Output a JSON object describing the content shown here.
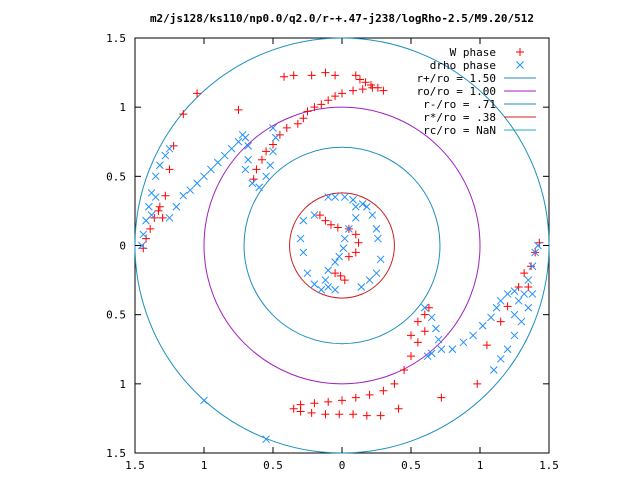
{
  "chart_data": {
    "type": "scatter",
    "title": "m2/js128/ks110/np0.0/q2.0/r-+.47-j238/logRho-2.5/M9.20/512",
    "xlabel": "",
    "ylabel": "",
    "xlim": [
      -1.5,
      1.5
    ],
    "ylim": [
      -1.5,
      1.5
    ],
    "x_tick_labels": [
      "1.5",
      "1",
      "0.5",
      "0",
      "0.5",
      "1",
      "1.5"
    ],
    "y_tick_labels": [
      "1.5",
      "1",
      "0.5",
      "0",
      "0.5",
      "1",
      "1.5"
    ],
    "grid": false,
    "legend_position": "top-right",
    "series": [
      {
        "name": "W phase",
        "marker": "plus",
        "color": "#ff0000",
        "points": [
          [
            -1.44,
            -0.02
          ],
          [
            -1.42,
            0.05
          ],
          [
            -1.39,
            0.12
          ],
          [
            -1.36,
            0.2
          ],
          [
            -1.32,
            0.28
          ],
          [
            -1.28,
            0.36
          ],
          [
            -1.25,
            0.55
          ],
          [
            -1.22,
            0.72
          ],
          [
            -1.15,
            0.95
          ],
          [
            -1.05,
            1.1
          ],
          [
            -0.75,
            0.98
          ],
          [
            -0.42,
            1.22
          ],
          [
            -0.22,
            1.23
          ],
          [
            -0.12,
            1.25
          ],
          [
            -0.05,
            1.23
          ],
          [
            0.1,
            1.23
          ],
          [
            0.13,
            1.2
          ],
          [
            0.17,
            1.18
          ],
          [
            0.21,
            1.16
          ],
          [
            0.26,
            1.14
          ],
          [
            0.3,
            1.12
          ],
          [
            0.22,
            1.14
          ],
          [
            0.15,
            1.13
          ],
          [
            0.08,
            1.12
          ],
          [
            0.0,
            1.1
          ],
          [
            -0.05,
            1.08
          ],
          [
            -0.1,
            1.05
          ],
          [
            -0.15,
            1.02
          ],
          [
            -0.2,
            1.0
          ],
          [
            -0.25,
            0.97
          ],
          [
            -0.28,
            0.92
          ],
          [
            -0.32,
            0.88
          ],
          [
            -0.4,
            0.85
          ],
          [
            -0.45,
            0.8
          ],
          [
            -0.5,
            0.73
          ],
          [
            -0.55,
            0.68
          ],
          [
            -0.58,
            0.62
          ],
          [
            -0.62,
            0.55
          ],
          [
            -0.64,
            0.48
          ],
          [
            -0.16,
            0.22
          ],
          [
            -0.12,
            0.18
          ],
          [
            -0.08,
            0.15
          ],
          [
            -0.03,
            0.13
          ],
          [
            0.05,
            0.12
          ],
          [
            0.1,
            0.08
          ],
          [
            0.12,
            0.02
          ],
          [
            0.1,
            -0.05
          ],
          [
            0.05,
            -0.08
          ],
          [
            -0.05,
            -0.2
          ],
          [
            -0.01,
            -0.22
          ],
          [
            0.02,
            -0.25
          ],
          [
            0.55,
            -0.55
          ],
          [
            0.6,
            -0.5
          ],
          [
            0.63,
            -0.45
          ],
          [
            0.6,
            -0.62
          ],
          [
            0.55,
            -0.7
          ],
          [
            0.5,
            -0.8
          ],
          [
            0.45,
            -0.9
          ],
          [
            0.38,
            -1.0
          ],
          [
            0.3,
            -1.05
          ],
          [
            0.2,
            -1.08
          ],
          [
            0.1,
            -1.1
          ],
          [
            0.0,
            -1.12
          ],
          [
            -0.1,
            -1.13
          ],
          [
            -0.2,
            -1.14
          ],
          [
            -0.3,
            -1.15
          ],
          [
            -0.35,
            -1.18
          ],
          [
            -0.3,
            -1.2
          ],
          [
            -0.22,
            -1.21
          ],
          [
            -0.12,
            -1.22
          ],
          [
            -0.02,
            -1.22
          ],
          [
            0.08,
            -1.22
          ],
          [
            0.18,
            -1.23
          ],
          [
            0.28,
            -1.23
          ],
          [
            0.41,
            -1.18
          ],
          [
            0.72,
            -1.1
          ],
          [
            0.98,
            -1.0
          ],
          [
            1.05,
            -0.72
          ],
          [
            1.15,
            -0.55
          ],
          [
            1.2,
            -0.44
          ],
          [
            1.28,
            -0.3
          ],
          [
            1.32,
            -0.2
          ],
          [
            1.35,
            -0.3
          ],
          [
            1.37,
            -0.15
          ],
          [
            1.4,
            -0.05
          ],
          [
            1.43,
            0.02
          ],
          [
            -1.33,
            0.25
          ],
          [
            -1.3,
            0.2
          ],
          [
            0.5,
            -0.65
          ],
          [
            -0.35,
            1.23
          ]
        ]
      },
      {
        "name": "drho phase",
        "marker": "cross",
        "color": "#1f8fff",
        "points": [
          [
            -1.45,
            0.0
          ],
          [
            -1.44,
            0.08
          ],
          [
            -1.42,
            0.18
          ],
          [
            -1.4,
            0.28
          ],
          [
            -1.38,
            0.38
          ],
          [
            -1.35,
            0.5
          ],
          [
            -1.32,
            0.58
          ],
          [
            -1.28,
            0.65
          ],
          [
            -1.25,
            0.7
          ],
          [
            -1.35,
            0.35
          ],
          [
            -1.38,
            0.22
          ],
          [
            -1.1,
            0.4
          ],
          [
            -1.05,
            0.45
          ],
          [
            -1.0,
            0.5
          ],
          [
            -0.95,
            0.55
          ],
          [
            -0.9,
            0.6
          ],
          [
            -0.85,
            0.65
          ],
          [
            -0.8,
            0.7
          ],
          [
            -0.75,
            0.75
          ],
          [
            -0.72,
            0.8
          ],
          [
            -0.7,
            0.78
          ],
          [
            -0.68,
            0.72
          ],
          [
            -0.68,
            0.62
          ],
          [
            -0.7,
            0.55
          ],
          [
            -0.65,
            0.45
          ],
          [
            -0.6,
            0.42
          ],
          [
            -0.55,
            0.5
          ],
          [
            -0.52,
            0.58
          ],
          [
            -0.5,
            0.68
          ],
          [
            -0.48,
            0.78
          ],
          [
            -0.5,
            0.85
          ],
          [
            -1.25,
            0.2
          ],
          [
            -1.2,
            0.28
          ],
          [
            -1.15,
            0.36
          ],
          [
            -0.1,
            0.35
          ],
          [
            -0.05,
            0.35
          ],
          [
            0.02,
            0.35
          ],
          [
            0.08,
            0.33
          ],
          [
            0.1,
            0.28
          ],
          [
            0.1,
            0.2
          ],
          [
            0.05,
            0.12
          ],
          [
            0.02,
            0.05
          ],
          [
            0.01,
            -0.02
          ],
          [
            -0.02,
            -0.08
          ],
          [
            -0.05,
            -0.12
          ],
          [
            -0.1,
            -0.18
          ],
          [
            -0.12,
            -0.25
          ],
          [
            -0.1,
            -0.3
          ],
          [
            -0.05,
            -0.32
          ],
          [
            -0.2,
            0.22
          ],
          [
            -0.28,
            0.18
          ],
          [
            -0.3,
            0.05
          ],
          [
            -0.28,
            -0.05
          ],
          [
            -0.25,
            -0.2
          ],
          [
            -0.2,
            -0.28
          ],
          [
            -0.15,
            -0.32
          ],
          [
            0.15,
            0.3
          ],
          [
            0.18,
            0.28
          ],
          [
            0.22,
            0.22
          ],
          [
            0.25,
            0.12
          ],
          [
            0.26,
            0.05
          ],
          [
            0.28,
            -0.1
          ],
          [
            0.25,
            -0.2
          ],
          [
            0.2,
            -0.25
          ],
          [
            0.14,
            -0.3
          ],
          [
            0.6,
            -0.45
          ],
          [
            0.65,
            -0.52
          ],
          [
            0.68,
            -0.6
          ],
          [
            0.7,
            -0.68
          ],
          [
            0.72,
            -0.75
          ],
          [
            0.65,
            -0.78
          ],
          [
            0.62,
            -0.8
          ],
          [
            0.8,
            -0.75
          ],
          [
            0.88,
            -0.7
          ],
          [
            0.95,
            -0.65
          ],
          [
            1.02,
            -0.58
          ],
          [
            1.08,
            -0.52
          ],
          [
            1.12,
            -0.45
          ],
          [
            1.15,
            -0.4
          ],
          [
            1.2,
            -0.35
          ],
          [
            1.25,
            -0.33
          ],
          [
            1.28,
            -0.4
          ],
          [
            1.32,
            -0.35
          ],
          [
            1.35,
            -0.25
          ],
          [
            1.38,
            -0.15
          ],
          [
            1.4,
            -0.05
          ],
          [
            1.42,
            0.0
          ],
          [
            1.38,
            -0.35
          ],
          [
            1.35,
            -0.45
          ],
          [
            1.3,
            -0.55
          ],
          [
            1.25,
            -0.65
          ],
          [
            1.2,
            -0.75
          ],
          [
            1.15,
            -0.82
          ],
          [
            1.1,
            -0.9
          ],
          [
            1.25,
            -0.5
          ],
          [
            -1.0,
            -1.12
          ],
          [
            -0.55,
            -1.4
          ]
        ]
      }
    ],
    "circles": [
      {
        "name": "r+/ro = 1.50",
        "radius": 1.5,
        "color": "#1f8fbf"
      },
      {
        "name": "ro/ro = 1.00",
        "radius": 1.0,
        "color": "#a020c0"
      },
      {
        "name": "r-/ro = .71",
        "radius": 0.71,
        "color": "#1f8fbf"
      },
      {
        "name": "r*/ro = .38",
        "radius": 0.38,
        "color": "#cc2020"
      },
      {
        "name": "rc/ro = NaN",
        "radius": null,
        "color": "#20b0b0"
      }
    ]
  }
}
